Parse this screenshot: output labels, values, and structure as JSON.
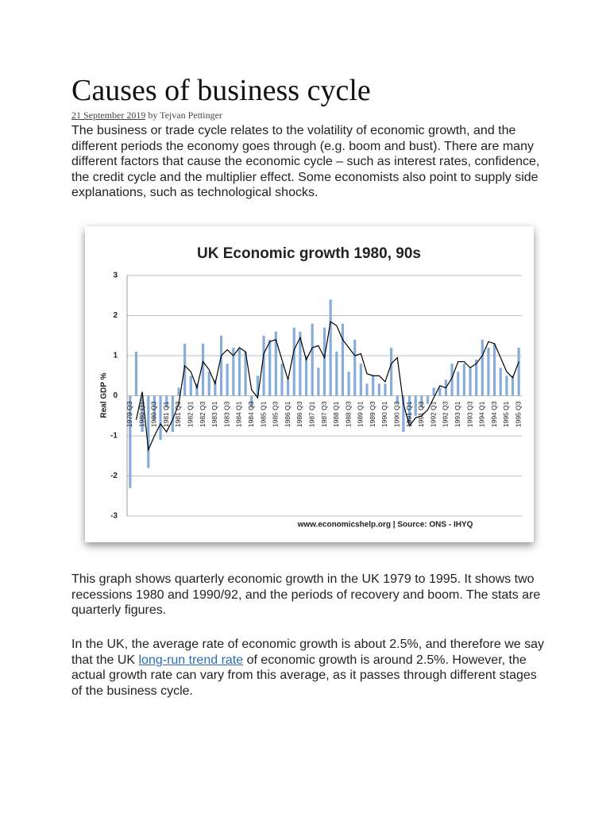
{
  "title": "Causes of business cycle",
  "meta": {
    "date": "21 September 2019",
    "author": "by Tejvan Pettinger"
  },
  "paragraphs": [
    "The business or trade cycle relates to the volatility of economic growth, and the different periods the economy goes through (e.g. boom and bust). There are many different factors that cause the economic cycle – such as interest rates, confidence, the credit cycle and the multiplier effect. Some economists also point to supply side explanations, such as technological shocks.",
    "This graph shows quarterly economic growth in the UK 1979 to 1995. It shows two recessions 1980 and 1990/92, and the periods of recovery and boom. The stats are quarterly figures."
  ],
  "paragraph3": {
    "before": "In the UK, the average rate of economic growth is about 2.5%, and therefore we say that the UK ",
    "link": "long-run trend rate",
    "after": " of economic growth is around 2.5%. However, the actual growth rate can vary from this average, as it passes through different stages of the business cycle."
  },
  "chart_data": {
    "type": "bar",
    "title": "UK Economic growth 1980, 90s",
    "y_label": "Real GDP %",
    "source": "www.economicshelp.org | Source: ONS - IHYQ",
    "categories": [
      "1979 Q3",
      null,
      "1980 Q1",
      null,
      "1980 Q3",
      null,
      "1981 Q1",
      null,
      "1981 Q3",
      null,
      "1982 Q1",
      null,
      "1982 Q3",
      null,
      "1983 Q1",
      null,
      "1983 Q3",
      null,
      "1984 Q1",
      null,
      "1984 Q3",
      null,
      "1985 Q1",
      null,
      "1985 Q3",
      null,
      "1986 Q1",
      null,
      "1986 Q3",
      null,
      "1987 Q1",
      null,
      "1987 Q3",
      null,
      "1988 Q1",
      null,
      "1988 Q3",
      null,
      "1989 Q1",
      null,
      "1989 Q3",
      null,
      "1990 Q1",
      null,
      "1990 Q3",
      null,
      "1991 Q1",
      null,
      "1991 Q3",
      null,
      "1992 Q1",
      null,
      "1992 Q3",
      null,
      "1993 Q1",
      null,
      "1993 Q3",
      null,
      "1994 Q1",
      null,
      "1994 Q3",
      null,
      "1995 Q1",
      null,
      "1995 Q3"
    ],
    "series": [
      {
        "type": "bar",
        "color": "#86acd9",
        "values": [
          -2.3,
          1.1,
          -0.9,
          -1.8,
          -0.6,
          -1.1,
          -0.3,
          -0.9,
          0.2,
          1.3,
          0.5,
          0.3,
          1.3,
          0.6,
          0.4,
          1.5,
          0.8,
          1.2,
          1.2,
          1.1,
          -0.3,
          0.5,
          1.5,
          1.4,
          1.6,
          0.8,
          0.4,
          1.7,
          1.6,
          1.0,
          1.8,
          0.7,
          1.7,
          2.4,
          1.1,
          1.8,
          0.6,
          1.4,
          0.8,
          0.3,
          0.5,
          0.3,
          0.3,
          1.2,
          -0.2,
          -0.9,
          -0.7,
          -0.5,
          -0.3,
          -0.2,
          0.2,
          0.2,
          0.4,
          0.8,
          0.6,
          0.8,
          0.7,
          0.9,
          1.4,
          1.2,
          1.3,
          0.7,
          0.5,
          0.5,
          1.2
        ]
      },
      {
        "type": "line",
        "color": "#000000",
        "values": [
          null,
          -0.6,
          0.1,
          -1.35,
          -1.0,
          -0.7,
          -0.9,
          -0.6,
          -0.2,
          0.75,
          0.6,
          0.2,
          0.85,
          0.65,
          0.3,
          1.0,
          1.15,
          1.0,
          1.2,
          1.1,
          0.15,
          -0.05,
          1.05,
          1.35,
          1.4,
          0.9,
          0.4,
          1.15,
          1.45,
          0.9,
          1.2,
          1.25,
          0.95,
          1.85,
          1.75,
          1.4,
          1.2,
          1.0,
          1.05,
          0.55,
          0.5,
          0.5,
          0.35,
          0.8,
          0.95,
          -0.2,
          -0.75,
          -0.55,
          -0.5,
          -0.35,
          -0.05,
          0.25,
          0.2,
          0.45,
          0.85,
          0.85,
          0.7,
          0.8,
          1.0,
          1.35,
          1.3,
          0.95,
          0.6,
          0.45,
          0.85
        ]
      }
    ],
    "ylim": [
      -3,
      3
    ],
    "yticks": [
      -3,
      -2,
      -1,
      0,
      1,
      2,
      3
    ],
    "grid": true
  }
}
